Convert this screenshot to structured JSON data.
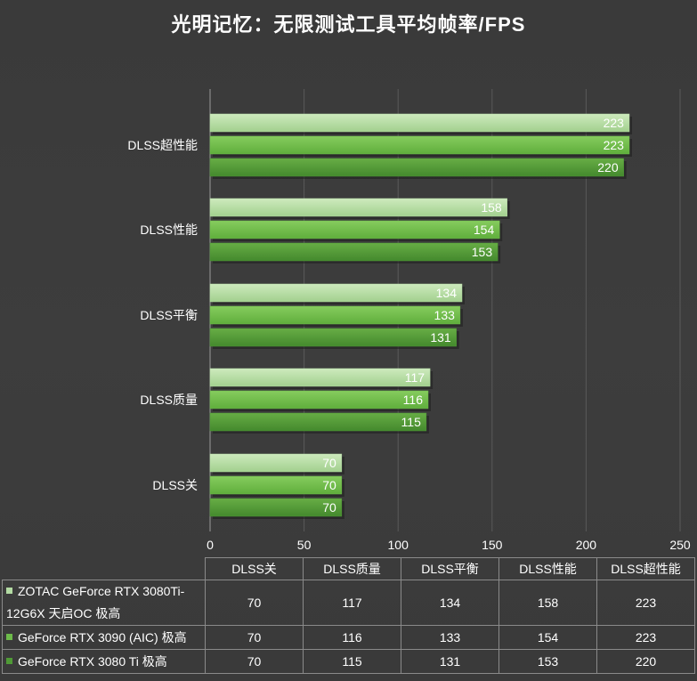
{
  "chart_data": {
    "type": "bar",
    "orientation": "horizontal",
    "title": "光明记忆：无限测试工具平均帧率/FPS",
    "categories": [
      "DLSS超性能",
      "DLSS性能",
      "DLSS平衡",
      "DLSS质量",
      "DLSS关"
    ],
    "series": [
      {
        "name": "ZOTAC GeForce RTX 3080Ti-12G6X 天启OC 极高",
        "color": "#b3dba3",
        "values": [
          223,
          158,
          134,
          117,
          70
        ]
      },
      {
        "name": "GeForce RTX 3090 (AIC) 极高",
        "color": "#6dbb4a",
        "values": [
          223,
          154,
          133,
          116,
          70
        ]
      },
      {
        "name": "GeForce RTX 3080 Ti 极高",
        "color": "#4f9a36",
        "values": [
          220,
          153,
          131,
          115,
          70
        ]
      }
    ],
    "xlim": [
      0,
      250
    ],
    "xticks": [
      "0",
      "50",
      "100",
      "150",
      "200",
      "250"
    ],
    "grid": true,
    "legend": "table-bottom"
  },
  "table": {
    "headers": [
      "DLSS关",
      "DLSS质量",
      "DLSS平衡",
      "DLSS性能",
      "DLSS超性能"
    ],
    "rows": [
      {
        "series": "ZOTAC GeForce RTX 3080Ti-12G6X 天启OC 极高",
        "values": [
          "70",
          "117",
          "134",
          "158",
          "223"
        ]
      },
      {
        "series": "GeForce RTX 3090 (AIC) 极高",
        "values": [
          "70",
          "116",
          "133",
          "154",
          "223"
        ]
      },
      {
        "series": "GeForce RTX 3080 Ti 极高",
        "values": [
          "70",
          "115",
          "131",
          "153",
          "220"
        ]
      }
    ]
  }
}
